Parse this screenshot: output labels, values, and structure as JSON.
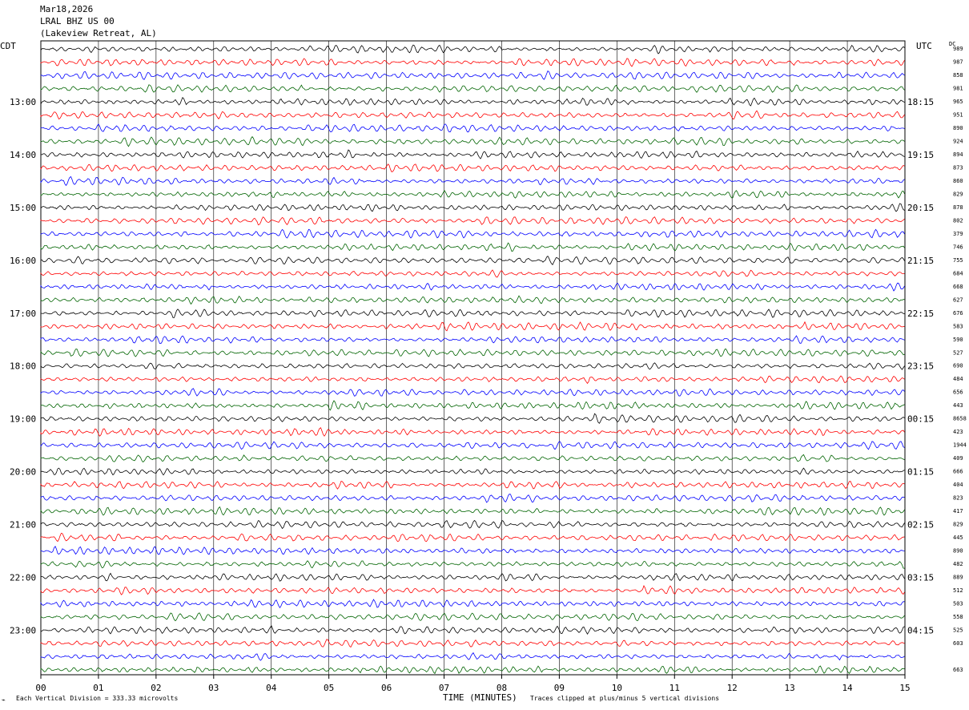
{
  "header": {
    "date": "Mar18,2026",
    "station": "LRAL BHZ US 00",
    "location": "(Lakeview Retreat, AL)"
  },
  "labels": {
    "left_tz": "CDT",
    "right_tz": "UTC",
    "dc": "DC"
  },
  "footer": {
    "vertical_division": "Each Vertical Division =  333.33 microvolts",
    "xlabel": "TIME (MINUTES)",
    "clip_note": "Traces clipped at plus/minus 5 vertical divisions"
  },
  "chart_data": {
    "type": "line",
    "title": "Mar18,2026 LRAL BHZ US 00 (Lakeview Retreat, AL)",
    "xlabel": "TIME (MINUTES)",
    "xlim": [
      0,
      15
    ],
    "x_ticks": [
      "00",
      "01",
      "02",
      "03",
      "04",
      "05",
      "06",
      "07",
      "08",
      "09",
      "10",
      "11",
      "12",
      "13",
      "14",
      "15"
    ],
    "trace_count": 48,
    "trace_minutes": 15,
    "trace_colors": [
      "#000000",
      "#ff0000",
      "#0000ff",
      "#006400"
    ],
    "cdt_labels": [
      "13:00",
      "14:00",
      "15:00",
      "16:00",
      "17:00",
      "18:00",
      "19:00",
      "20:00",
      "21:00",
      "22:00",
      "23:00"
    ],
    "utc_labels": [
      "18:15",
      "19:15",
      "20:15",
      "21:15",
      "22:15",
      "23:15",
      "00:15",
      "01:15",
      "02:15",
      "03:15",
      "04:15"
    ],
    "dc_offsets": [
      "989",
      "987",
      "858",
      "981",
      "965",
      "951",
      "890",
      "924",
      "894",
      "873",
      "860",
      "829",
      "878",
      "802",
      "379",
      "746",
      "755",
      "684",
      "668",
      "627",
      "676",
      "583",
      "590",
      "527",
      "690",
      "484",
      "656",
      "443",
      "8658",
      "423",
      "1944",
      "409",
      "666",
      "404",
      "823",
      "417",
      "829",
      "445",
      "890",
      "482",
      "889",
      "512",
      "503",
      "558",
      "525",
      "603",
      "",
      "663"
    ],
    "grid": true
  }
}
